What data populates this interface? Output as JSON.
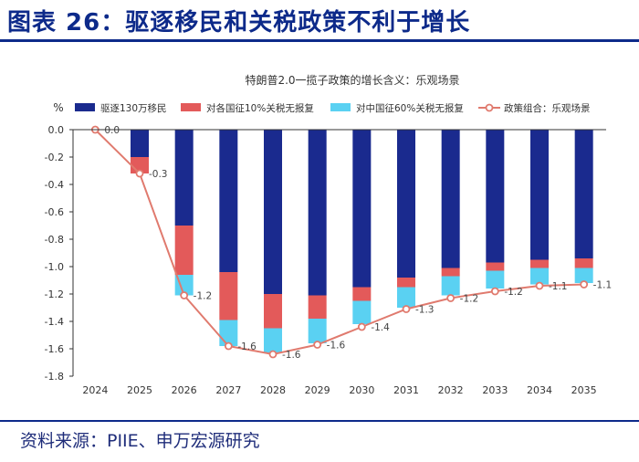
{
  "header": {
    "figure_title": "图表 26：驱逐移民和关税政策不利于增长"
  },
  "footer": {
    "source": "资料来源：PIIE、申万宏源研究"
  },
  "colors": {
    "accent": "#0d2a8a",
    "deport": "#1a2a8e",
    "eu_tariff": "#e35a5a",
    "china_tariff": "#5ad1f2",
    "combo_line": "#e07a6e",
    "axis": "#333333"
  },
  "chart_data": {
    "type": "bar",
    "stacked": true,
    "title": "特朗普2.0一揽子政策的增长含义：乐观场景",
    "ylabel": "%",
    "xlabel": "",
    "ylim": [
      -1.8,
      0.0
    ],
    "yticks": [
      "0.0",
      "-0.2",
      "-0.4",
      "-0.6",
      "-0.8",
      "-1.0",
      "-1.2",
      "-1.4",
      "-1.6",
      "-1.8"
    ],
    "ytick_values": [
      0.0,
      -0.2,
      -0.4,
      -0.6,
      -0.8,
      -1.0,
      -1.2,
      -1.4,
      -1.6,
      -1.8
    ],
    "categories": [
      "2024",
      "2025",
      "2026",
      "2027",
      "2028",
      "2029",
      "2030",
      "2031",
      "2032",
      "2033",
      "2034",
      "2035"
    ],
    "legend_position": "top",
    "series": [
      {
        "name": "驱逐130万移民",
        "kind": "bar",
        "values": [
          0.0,
          -0.2,
          -0.7,
          -1.04,
          -1.2,
          -1.21,
          -1.15,
          -1.08,
          -1.01,
          -0.97,
          -0.95,
          -0.94
        ]
      },
      {
        "name": "对各国征10%关税无报复",
        "kind": "bar",
        "values": [
          0.0,
          -0.12,
          -0.36,
          -0.35,
          -0.25,
          -0.17,
          -0.1,
          -0.07,
          -0.06,
          -0.06,
          -0.06,
          -0.07
        ]
      },
      {
        "name": "对中国征60%关税无报复",
        "kind": "bar",
        "values": [
          0.0,
          0.0,
          -0.15,
          -0.19,
          -0.18,
          -0.18,
          -0.17,
          -0.15,
          -0.14,
          -0.13,
          -0.12,
          -0.11
        ]
      },
      {
        "name": "政策组合：乐观场景",
        "kind": "line",
        "values": [
          0.0,
          -0.32,
          -1.21,
          -1.58,
          -1.64,
          -1.57,
          -1.44,
          -1.31,
          -1.23,
          -1.18,
          -1.14,
          -1.13
        ]
      }
    ],
    "data_labels": [
      "0.0",
      "-0.3",
      "-1.2",
      "-1.6",
      "-1.6",
      "-1.6",
      "-1.4",
      "-1.3",
      "-1.2",
      "-1.2",
      "-1.1",
      "-1.1"
    ]
  }
}
